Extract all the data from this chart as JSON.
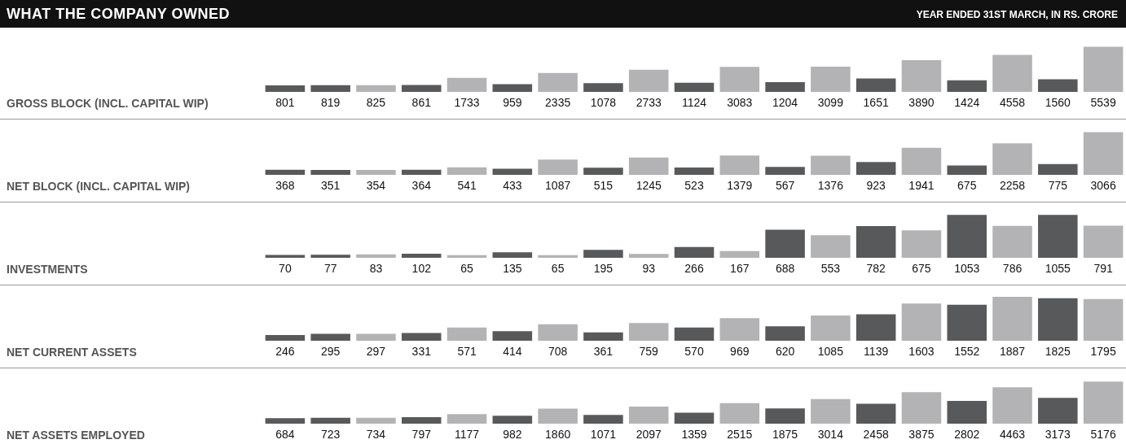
{
  "chart_data": [
    {
      "type": "bar",
      "title": "WHAT THE COMPANY OWNED",
      "subtitle": "YEAR ENDED 31ST MARCH, IN RS. CRORE",
      "ylabel": "GROSS BLOCK (INCL. CAPITAL WIP)",
      "categories": [
        null,
        null,
        null,
        null,
        null,
        null,
        null,
        null,
        null,
        null,
        null,
        null,
        null,
        null,
        null,
        null,
        null,
        null,
        null
      ],
      "data_labels": true,
      "tick_labels": false,
      "values": [
        801,
        819,
        825,
        861,
        1733,
        959,
        2335,
        1078,
        2733,
        1124,
        3083,
        1204,
        3099,
        1651,
        3890,
        1424,
        4558,
        1560,
        5539
      ],
      "colors": [
        "#58595b",
        "#58595b",
        "#b3b3b5",
        "#58595b",
        "#b3b3b5",
        "#58595b",
        "#b3b3b5",
        "#58595b",
        "#b3b3b5",
        "#58595b",
        "#b3b3b5",
        "#58595b",
        "#b3b3b5",
        "#58595b",
        "#b3b3b5",
        "#58595b",
        "#b3b3b5",
        "#58595b",
        "#b3b3b5"
      ]
    },
    {
      "type": "bar",
      "ylabel": "NET BLOCK (INCL. CAPITAL WIP)",
      "categories": [
        null,
        null,
        null,
        null,
        null,
        null,
        null,
        null,
        null,
        null,
        null,
        null,
        null,
        null,
        null,
        null,
        null,
        null,
        null
      ],
      "data_labels": true,
      "tick_labels": false,
      "values": [
        368,
        351,
        354,
        364,
        541,
        433,
        1087,
        515,
        1245,
        523,
        1379,
        567,
        1376,
        923,
        1941,
        675,
        2258,
        775,
        3066
      ],
      "colors": [
        "#58595b",
        "#58595b",
        "#b3b3b5",
        "#58595b",
        "#b3b3b5",
        "#58595b",
        "#b3b3b5",
        "#58595b",
        "#b3b3b5",
        "#58595b",
        "#b3b3b5",
        "#58595b",
        "#b3b3b5",
        "#58595b",
        "#b3b3b5",
        "#58595b",
        "#b3b3b5",
        "#58595b",
        "#b3b3b5"
      ]
    },
    {
      "type": "bar",
      "ylabel": "INVESTMENTS",
      "categories": [
        null,
        null,
        null,
        null,
        null,
        null,
        null,
        null,
        null,
        null,
        null,
        null,
        null,
        null,
        null,
        null,
        null,
        null,
        null
      ],
      "data_labels": true,
      "tick_labels": false,
      "values": [
        70,
        77,
        83,
        102,
        65,
        135,
        65,
        195,
        93,
        266,
        167,
        688,
        553,
        782,
        675,
        1053,
        786,
        1055,
        791
      ],
      "colors": [
        "#58595b",
        "#58595b",
        "#b3b3b5",
        "#58595b",
        "#b3b3b5",
        "#58595b",
        "#b3b3b5",
        "#58595b",
        "#b3b3b5",
        "#58595b",
        "#b3b3b5",
        "#58595b",
        "#b3b3b5",
        "#58595b",
        "#b3b3b5",
        "#58595b",
        "#b3b3b5",
        "#58595b",
        "#b3b3b5"
      ]
    },
    {
      "type": "bar",
      "ylabel": "NET CURRENT ASSETS",
      "categories": [
        null,
        null,
        null,
        null,
        null,
        null,
        null,
        null,
        null,
        null,
        null,
        null,
        null,
        null,
        null,
        null,
        null,
        null,
        null
      ],
      "data_labels": true,
      "tick_labels": false,
      "values": [
        246,
        295,
        297,
        331,
        571,
        414,
        708,
        361,
        759,
        570,
        969,
        620,
        1085,
        1139,
        1603,
        1552,
        1887,
        1825,
        1795
      ],
      "colors": [
        "#58595b",
        "#58595b",
        "#b3b3b5",
        "#58595b",
        "#b3b3b5",
        "#58595b",
        "#b3b3b5",
        "#58595b",
        "#b3b3b5",
        "#58595b",
        "#b3b3b5",
        "#58595b",
        "#b3b3b5",
        "#58595b",
        "#b3b3b5",
        "#58595b",
        "#b3b3b5",
        "#58595b",
        "#b3b3b5"
      ]
    },
    {
      "type": "bar",
      "ylabel": "NET ASSETS EMPLOYED",
      "categories": [
        null,
        null,
        null,
        null,
        null,
        null,
        null,
        null,
        null,
        null,
        null,
        null,
        null,
        null,
        null,
        null,
        null,
        null,
        null
      ],
      "data_labels": true,
      "tick_labels": false,
      "values": [
        684,
        723,
        734,
        797,
        1177,
        982,
        1860,
        1071,
        2097,
        1359,
        2515,
        1875,
        3014,
        2458,
        3875,
        2802,
        4463,
        3173,
        5176
      ],
      "colors": [
        "#58595b",
        "#58595b",
        "#b3b3b5",
        "#58595b",
        "#b3b3b5",
        "#58595b",
        "#b3b3b5",
        "#58595b",
        "#b3b3b5",
        "#58595b",
        "#b3b3b5",
        "#58595b",
        "#b3b3b5",
        "#58595b",
        "#b3b3b5",
        "#58595b",
        "#b3b3b5",
        "#58595b",
        "#b3b3b5"
      ]
    }
  ]
}
